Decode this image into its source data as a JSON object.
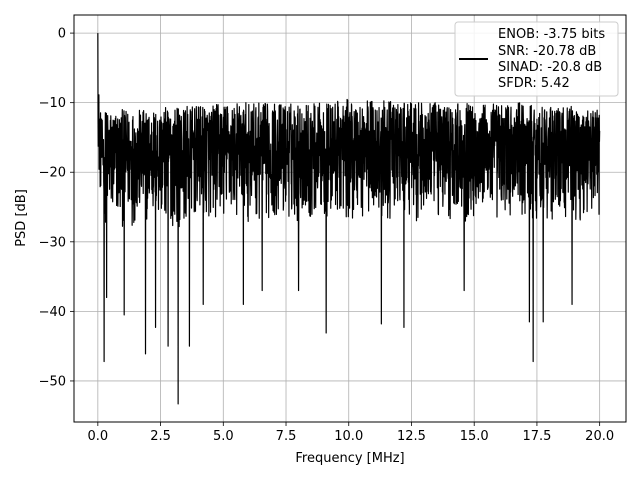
{
  "chart_data": {
    "type": "line",
    "title": "",
    "xlabel": "Frequency [MHz]",
    "ylabel": "PSD [dB]",
    "xlim": [
      -0.95,
      21.05
    ],
    "ylim": [
      -55.9,
      2.6
    ],
    "xticks": [
      0.0,
      2.5,
      5.0,
      7.5,
      10.0,
      12.5,
      15.0,
      17.5,
      20.0
    ],
    "xtick_labels": [
      "0.0",
      "2.5",
      "5.0",
      "7.5",
      "10.0",
      "12.5",
      "15.0",
      "17.5",
      "20.0"
    ],
    "yticks": [
      0,
      -10,
      -20,
      -30,
      -40,
      -50
    ],
    "ytick_labels": [
      "0",
      "−10",
      "−20",
      "−30",
      "−40",
      "−50"
    ],
    "grid": true,
    "legend_position": "top-right",
    "legend_lines": [
      "ENOB: -3.75 bits",
      "SNR: -20.78 dB",
      "SINAD: -20.8 dB",
      "SFDR: 5.42"
    ],
    "series": [
      {
        "color": "#000000",
        "envelope": {
          "x": [
            0.0,
            0.02,
            0.05,
            0.1,
            0.15,
            0.2,
            0.3,
            0.5,
            1.0,
            2.0,
            3.0,
            4.0,
            5.0,
            6.0,
            7.0,
            8.0,
            9.0,
            10.0,
            11.0,
            12.0,
            13.0,
            14.0,
            15.0,
            16.0,
            17.0,
            18.0,
            19.0,
            20.0
          ],
          "upper": [
            0,
            -5.5,
            -9,
            -11,
            -12,
            -13,
            -11,
            -11,
            -11,
            -11,
            -10.5,
            -10.5,
            -10,
            -10,
            -10,
            -10,
            -10,
            -9.5,
            -9.5,
            -10,
            -10,
            -10,
            -10,
            -10,
            -10,
            -10.5,
            -10.5,
            -11
          ],
          "lower": [
            -10,
            -20,
            -24,
            -25,
            -26,
            -24,
            -30,
            -30,
            -30,
            -29,
            -30,
            -29,
            -29,
            -29,
            -29,
            -29,
            -29,
            -29,
            -29,
            -29,
            -29,
            -29,
            -29,
            -29,
            -29,
            -29,
            -29,
            -28
          ]
        },
        "deep_dips": [
          {
            "x": 0.25,
            "y": -47.2
          },
          {
            "x": 0.35,
            "y": -38.0
          },
          {
            "x": 1.05,
            "y": -40.5
          },
          {
            "x": 1.9,
            "y": -46.1
          },
          {
            "x": 2.3,
            "y": -42.3
          },
          {
            "x": 2.8,
            "y": -45.0
          },
          {
            "x": 3.2,
            "y": -53.3
          },
          {
            "x": 3.65,
            "y": -45.0
          },
          {
            "x": 4.2,
            "y": -39.0
          },
          {
            "x": 5.8,
            "y": -39.0
          },
          {
            "x": 6.55,
            "y": -37.0
          },
          {
            "x": 8.0,
            "y": -37.0
          },
          {
            "x": 9.1,
            "y": -43.1
          },
          {
            "x": 11.3,
            "y": -41.8
          },
          {
            "x": 12.2,
            "y": -42.3
          },
          {
            "x": 14.6,
            "y": -37.0
          },
          {
            "x": 17.2,
            "y": -41.5
          },
          {
            "x": 17.35,
            "y": -47.2
          },
          {
            "x": 17.75,
            "y": -41.5
          },
          {
            "x": 18.9,
            "y": -39.0
          }
        ]
      }
    ]
  }
}
